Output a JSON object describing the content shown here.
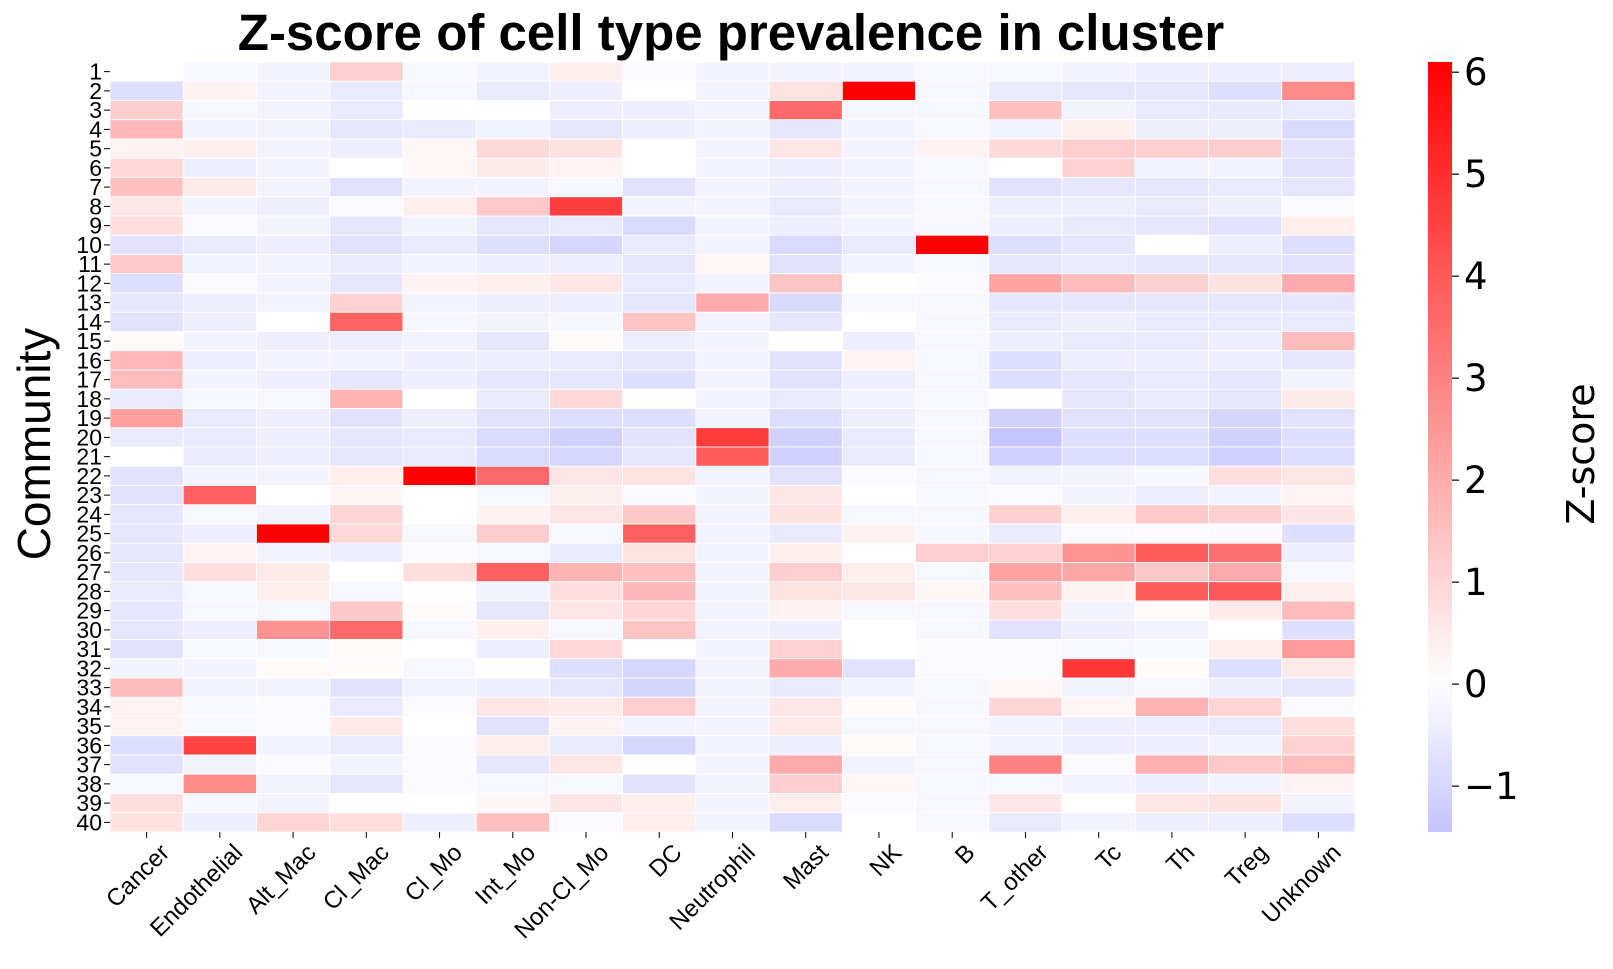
{
  "chart_data": {
    "type": "heatmap",
    "title": "Z-score of cell type prevalence in cluster",
    "xlabel": "",
    "ylabel": "Community",
    "colorbar_label": "Z-score",
    "colorbar_ticks": [
      "−1",
      "0",
      "1",
      "2",
      "3",
      "4",
      "5",
      "6"
    ],
    "colorbar_tick_values": [
      -1,
      0,
      1,
      2,
      3,
      4,
      5,
      6
    ],
    "vmin": -1.45,
    "vmax": 6.1,
    "colors": {
      "low": "#c3c3ff",
      "mid": "#ffffff",
      "high": "#ff0000"
    },
    "columns": [
      "Cancer",
      "Endothelial",
      "Alt_Mac",
      "Cl_Mac",
      "Cl_Mo",
      "Int_Mo",
      "Non-Cl_Mo",
      "DC",
      "Neutrophil",
      "Mast",
      "NK",
      "B",
      "T_other",
      "Tc",
      "Th",
      "Treg",
      "Unknown"
    ],
    "rows": [
      "1",
      "2",
      "3",
      "4",
      "5",
      "6",
      "7",
      "8",
      "9",
      "10",
      "11",
      "12",
      "13",
      "14",
      "15",
      "16",
      "17",
      "18",
      "19",
      "20",
      "21",
      "22",
      "23",
      "24",
      "25",
      "26",
      "27",
      "28",
      "29",
      "30",
      "31",
      "32",
      "33",
      "34",
      "35",
      "36",
      "37",
      "38",
      "39",
      "40"
    ],
    "values": [
      [
        0,
        -0.2,
        -0.3,
        1.2,
        -0.2,
        -0.3,
        0.4,
        -0.1,
        -0.3,
        -0.3,
        -0.3,
        -0.2,
        -0.2,
        -0.3,
        -0.4,
        -0.4,
        -0.4
      ],
      [
        -0.8,
        0.3,
        -0.3,
        -0.5,
        -0.2,
        -0.5,
        -0.4,
        0,
        -0.3,
        0.7,
        6.1,
        -0.2,
        -0.5,
        -0.6,
        -0.6,
        -0.8,
        2.8
      ],
      [
        1.2,
        -0.2,
        -0.3,
        -0.5,
        0,
        0,
        -0.4,
        -0.4,
        -0.3,
        3.6,
        -0.2,
        -0.2,
        1.5,
        -0.3,
        -0.5,
        -0.5,
        -0.5
      ],
      [
        1.7,
        -0.3,
        -0.3,
        -0.6,
        -0.5,
        -0.3,
        -0.6,
        -0.4,
        -0.3,
        -0.6,
        -0.3,
        -0.2,
        -0.3,
        0.4,
        -0.4,
        -0.4,
        -0.9
      ],
      [
        0.3,
        0.4,
        -0.3,
        -0.4,
        0.2,
        0.9,
        0.7,
        0,
        -0.3,
        0.6,
        -0.3,
        0.3,
        0.9,
        1.2,
        1.1,
        1.2,
        -0.7
      ],
      [
        0.9,
        -0.4,
        -0.3,
        0,
        0.2,
        0.5,
        0.3,
        0,
        -0.3,
        -0.4,
        -0.3,
        -0.2,
        0,
        1.1,
        -0.3,
        -0.3,
        -0.7
      ],
      [
        1.5,
        0.5,
        -0.3,
        -0.7,
        -0.3,
        -0.3,
        -0.2,
        -0.7,
        -0.3,
        -0.4,
        -0.3,
        -0.2,
        -0.7,
        -0.6,
        -0.6,
        -0.5,
        -0.6
      ],
      [
        0.6,
        -0.3,
        -0.4,
        -0.1,
        0.4,
        1.3,
        4.6,
        -0.3,
        -0.3,
        -0.5,
        -0.3,
        -0.2,
        -0.4,
        -0.4,
        -0.5,
        -0.4,
        -0.1
      ],
      [
        0.8,
        -0.1,
        -0.3,
        -0.6,
        -0.3,
        -0.6,
        -0.5,
        -0.9,
        -0.3,
        -0.4,
        -0.3,
        -0.2,
        -0.4,
        -0.5,
        -0.6,
        -0.7,
        0.4
      ],
      [
        -0.7,
        -0.5,
        -0.4,
        -0.7,
        -0.5,
        -0.8,
        -1.0,
        -0.5,
        -0.3,
        -0.9,
        -0.5,
        6.1,
        -0.8,
        -0.6,
        0,
        -0.4,
        -0.8
      ],
      [
        1.3,
        -0.3,
        -0.3,
        -0.5,
        -0.3,
        -0.4,
        -0.4,
        -0.6,
        0.2,
        -0.7,
        -0.3,
        -0.2,
        -0.6,
        -0.5,
        -0.6,
        -0.6,
        -0.7
      ],
      [
        -0.8,
        -0.1,
        -0.3,
        -0.6,
        0.3,
        0.4,
        0.6,
        -0.5,
        -0.3,
        1.4,
        0,
        -0.1,
        2.2,
        1.6,
        1.1,
        0.7,
        2.0
      ],
      [
        -0.6,
        -0.4,
        -0.3,
        1.1,
        -0.3,
        -0.4,
        -0.4,
        -0.6,
        2.0,
        -0.9,
        -0.2,
        -0.2,
        -0.6,
        -0.6,
        -0.6,
        -0.6,
        -0.6
      ],
      [
        -0.7,
        -0.4,
        0,
        3.7,
        -0.2,
        -0.3,
        -0.2,
        1.4,
        -0.3,
        -0.6,
        0,
        -0.2,
        -0.5,
        -0.4,
        -0.5,
        -0.5,
        -0.5
      ],
      [
        0.1,
        -0.3,
        -0.4,
        -0.4,
        -0.3,
        -0.6,
        0.1,
        -0.4,
        -0.3,
        0,
        -0.4,
        -0.2,
        -0.4,
        -0.5,
        -0.5,
        -0.4,
        1.6
      ],
      [
        1.7,
        -0.4,
        -0.3,
        -0.3,
        -0.4,
        -0.4,
        -0.5,
        -0.6,
        -0.3,
        -0.7,
        0.3,
        -0.2,
        -0.8,
        -0.4,
        -0.4,
        -0.4,
        -0.6
      ],
      [
        1.6,
        -0.3,
        -0.4,
        -0.6,
        -0.4,
        -0.6,
        -0.6,
        -0.8,
        -0.3,
        -0.7,
        -0.4,
        -0.2,
        -0.8,
        -0.6,
        -0.5,
        -0.6,
        -0.3
      ],
      [
        -0.5,
        -0.2,
        -0.2,
        1.8,
        0,
        -0.5,
        0.9,
        0,
        -0.3,
        -0.5,
        -0.3,
        -0.2,
        0,
        -0.6,
        -0.5,
        -0.6,
        0.5
      ],
      [
        2.3,
        -0.5,
        -0.4,
        -0.7,
        -0.4,
        -0.7,
        -0.8,
        -0.8,
        -0.3,
        -0.8,
        -0.4,
        -0.2,
        -1.1,
        -0.7,
        -0.7,
        -1.0,
        -0.7
      ],
      [
        -0.5,
        -0.5,
        -0.4,
        -0.6,
        -0.5,
        -0.9,
        -1.1,
        -0.7,
        4.7,
        -1.1,
        -0.5,
        -0.2,
        -1.4,
        -0.8,
        -0.8,
        -1.1,
        -0.8
      ],
      [
        0,
        -0.5,
        -0.4,
        -0.6,
        -0.5,
        -0.9,
        -1.0,
        -0.6,
        3.9,
        -1.1,
        -0.5,
        -0.2,
        -1.1,
        -0.8,
        -0.8,
        -1.1,
        -0.8
      ],
      [
        -0.7,
        -0.3,
        -0.3,
        0.4,
        6.1,
        3.6,
        0.6,
        0.7,
        -0.3,
        -0.7,
        -0.1,
        -0.2,
        -0.3,
        -0.3,
        -0.2,
        0.8,
        0.6
      ],
      [
        -0.7,
        3.8,
        0,
        0.2,
        0,
        -0.2,
        0.4,
        -0.1,
        -0.3,
        0.6,
        0,
        -0.2,
        -0.1,
        -0.3,
        -0.4,
        -0.3,
        0.3
      ],
      [
        -0.6,
        -0.2,
        -0.3,
        1.0,
        0,
        0.3,
        0.6,
        1.3,
        -0.3,
        0.7,
        -0.2,
        -0.2,
        1.1,
        0.4,
        1.3,
        1.1,
        0.6
      ],
      [
        -0.6,
        -0.4,
        6.1,
        0.9,
        -0.2,
        1.2,
        -0.2,
        3.8,
        -0.3,
        -0.5,
        0.3,
        -0.2,
        -0.5,
        -0.1,
        -0.1,
        -0.1,
        -0.8
      ],
      [
        -0.6,
        0.3,
        -0.3,
        -0.4,
        -0.1,
        -0.2,
        -0.5,
        0.7,
        -0.3,
        0.4,
        0,
        1.2,
        1.1,
        2.6,
        3.9,
        3.4,
        -0.4
      ],
      [
        -0.6,
        0.8,
        0.5,
        0,
        0.8,
        3.8,
        1.8,
        1.5,
        -0.3,
        1.2,
        0.4,
        -0.2,
        2.2,
        2.1,
        1.3,
        2.0,
        -0.2
      ],
      [
        -0.5,
        -0.2,
        0.4,
        -0.2,
        0,
        -0.3,
        0.8,
        1.7,
        -0.3,
        0.7,
        0.6,
        0.2,
        1.5,
        0.3,
        3.9,
        4.0,
        0.4
      ],
      [
        -0.6,
        -0.2,
        -0.2,
        1.3,
        0.1,
        -0.6,
        0.6,
        1.0,
        -0.3,
        0.3,
        -0.2,
        -0.2,
        0.8,
        -0.3,
        0.1,
        0.5,
        1.6
      ],
      [
        -0.6,
        -0.4,
        2.6,
        3.6,
        -0.2,
        0.4,
        -0.2,
        1.4,
        -0.3,
        -0.4,
        0,
        -0.2,
        -0.7,
        -0.4,
        -0.3,
        0,
        -0.8
      ],
      [
        -0.7,
        -0.2,
        -0.2,
        0.1,
        0,
        -0.4,
        0.9,
        0,
        -0.3,
        1.1,
        0,
        -0.1,
        -0.1,
        -0.2,
        -0.2,
        0.4,
        2.4
      ],
      [
        -0.3,
        -0.3,
        0.1,
        0.1,
        -0.2,
        0,
        -0.8,
        -1.0,
        -0.3,
        2.0,
        -0.7,
        -0.1,
        -0.1,
        4.8,
        0.1,
        -0.8,
        0.5
      ],
      [
        1.6,
        -0.3,
        -0.3,
        -0.7,
        -0.3,
        -0.4,
        -0.6,
        -1.0,
        -0.3,
        -0.5,
        -0.3,
        -0.2,
        0.2,
        -0.3,
        -0.2,
        -0.4,
        -0.6
      ],
      [
        0.3,
        -0.2,
        -0.1,
        -0.5,
        -0.1,
        0.6,
        0.5,
        1.2,
        -0.3,
        0.6,
        0.1,
        -0.2,
        1.0,
        0.2,
        1.8,
        1.0,
        -0.1
      ],
      [
        0.3,
        -0.2,
        -0.1,
        0.5,
        0,
        -0.7,
        0.3,
        -0.3,
        -0.3,
        0.5,
        -0.2,
        -0.2,
        -0.3,
        -0.4,
        -0.4,
        -0.5,
        0.8
      ],
      [
        -0.8,
        4.5,
        -0.3,
        -0.5,
        -0.1,
        0.4,
        -0.5,
        -1.0,
        -0.3,
        -0.4,
        0.1,
        -0.2,
        -0.3,
        -0.4,
        -0.4,
        -0.3,
        1.1
      ],
      [
        -0.7,
        -0.3,
        -0.1,
        -0.3,
        -0.1,
        -0.6,
        0.6,
        0,
        -0.3,
        2.0,
        -0.3,
        -0.2,
        3.0,
        -0.1,
        1.9,
        1.3,
        1.6
      ],
      [
        -0.2,
        2.8,
        -0.3,
        -0.6,
        -0.1,
        -0.2,
        -0.2,
        -0.7,
        -0.3,
        1.2,
        0.2,
        -0.2,
        -0.2,
        -0.3,
        -0.4,
        -0.3,
        0.3
      ],
      [
        0.8,
        -0.2,
        -0.3,
        0,
        0,
        0.2,
        0.6,
        0.4,
        -0.3,
        0.4,
        -0.1,
        -0.2,
        0.6,
        0,
        0.6,
        0.7,
        -0.3
      ],
      [
        0.7,
        -0.4,
        1.0,
        0.8,
        -0.4,
        1.5,
        -0.1,
        0.4,
        -0.3,
        -0.9,
        0,
        -0.2,
        -0.5,
        -0.3,
        -0.4,
        -0.4,
        -0.8
      ]
    ]
  }
}
